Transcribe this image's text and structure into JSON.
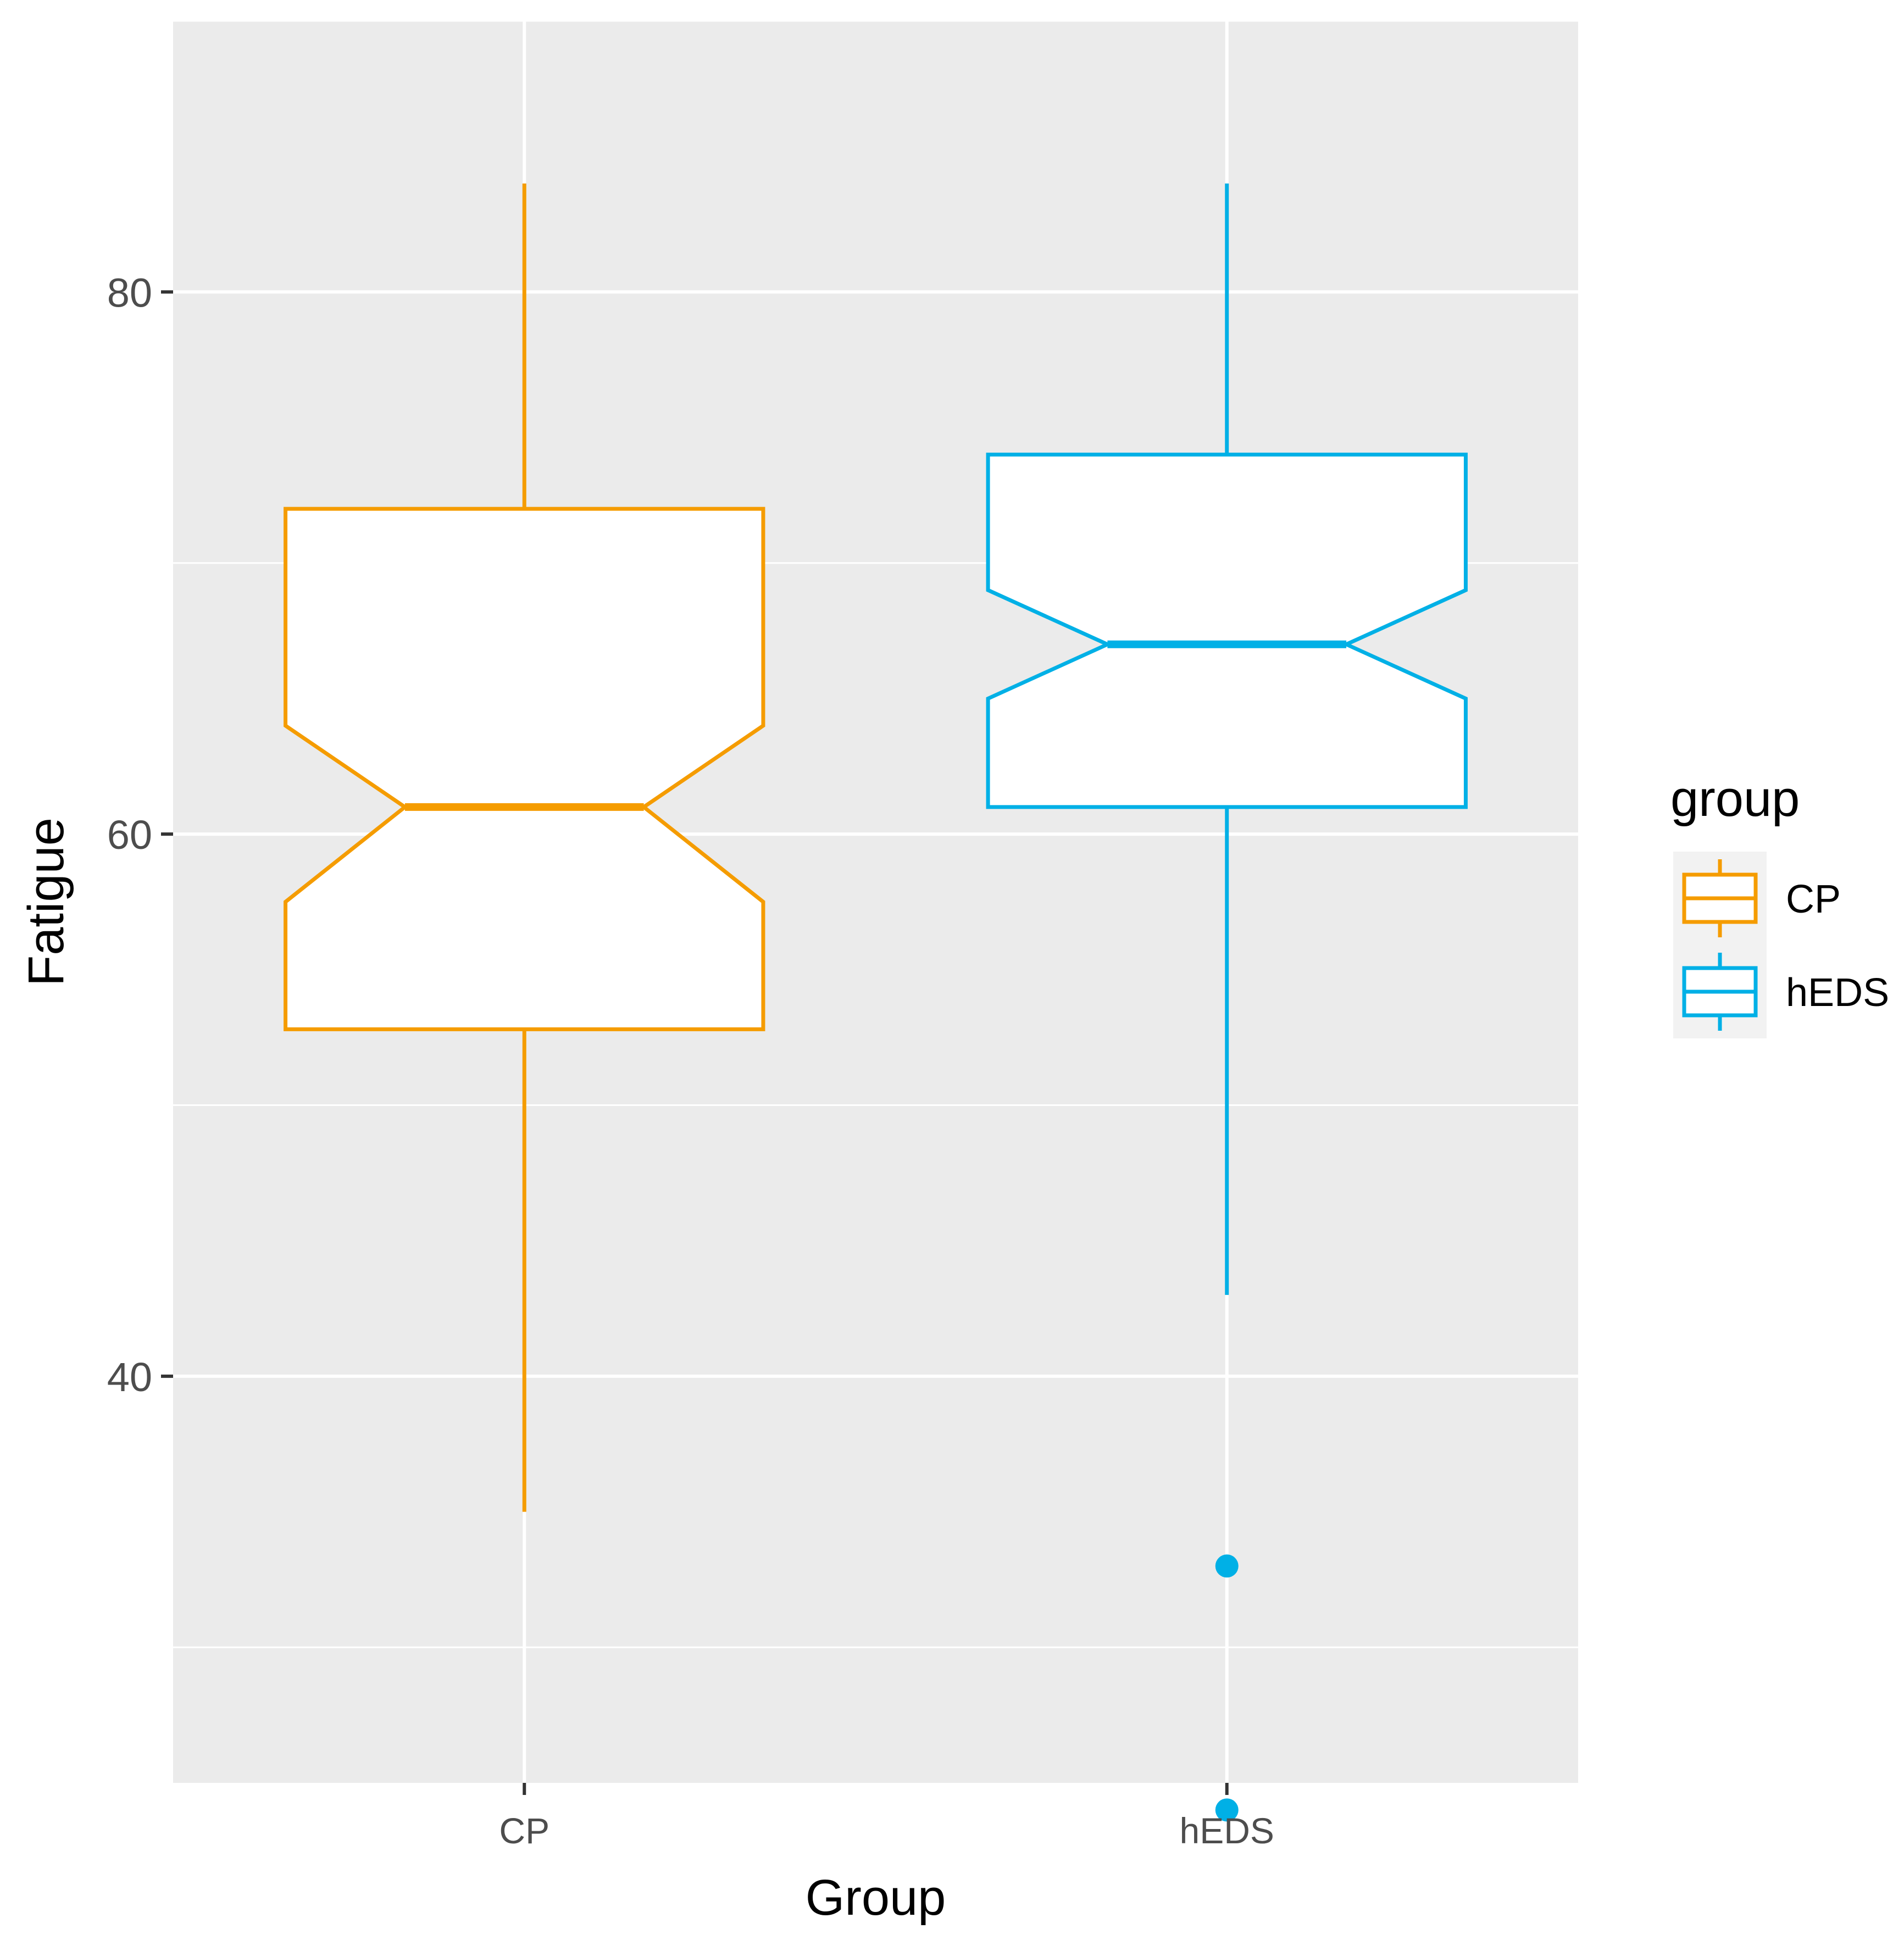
{
  "chart_data": {
    "type": "boxplot",
    "notched": true,
    "xlabel": "Group",
    "ylabel": "Fatigue",
    "categories": [
      "CP",
      "hEDS"
    ],
    "ylim": [
      25,
      90
    ],
    "yticks": [
      40,
      60,
      80
    ],
    "grid": true,
    "legend": {
      "title": "group",
      "position": "right",
      "entries": [
        "CP",
        "hEDS"
      ]
    },
    "series": [
      {
        "name": "CP",
        "color": "#F59C00",
        "whisker_low": 35,
        "q1": 52.8,
        "notch_low": 57.5,
        "median": 61,
        "notch_high": 64,
        "q3": 72,
        "whisker_high": 84,
        "outliers": []
      },
      {
        "name": "hEDS",
        "color": "#00B0E6",
        "whisker_low": 43,
        "q1": 61,
        "notch_low": 65,
        "median": 67,
        "notch_high": 69,
        "q3": 74,
        "whisker_high": 84,
        "outliers": [
          33,
          24
        ]
      }
    ]
  }
}
